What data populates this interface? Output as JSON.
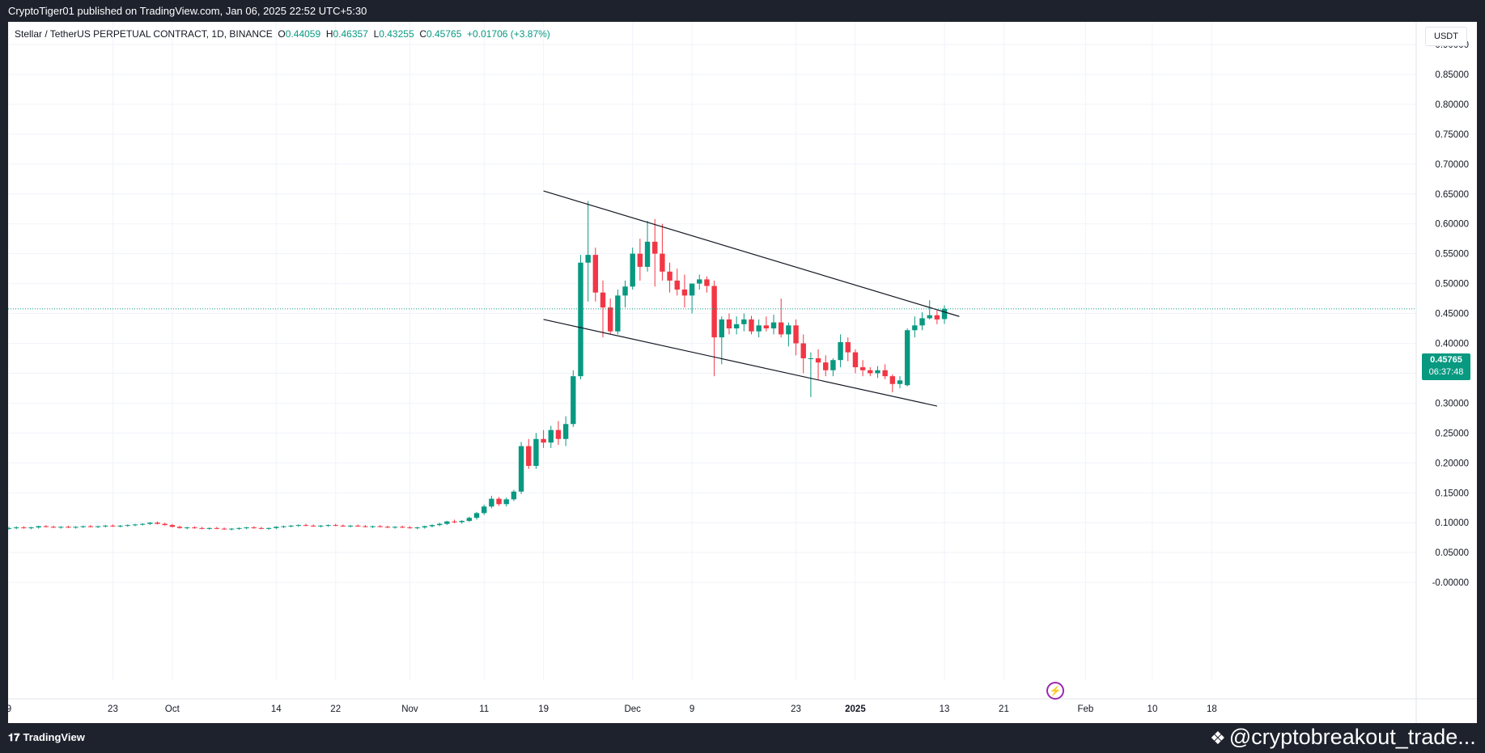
{
  "header": {
    "publish_line": "CryptoTiger01 published on TradingView.com, Jan 06, 2025 22:52 UTC+5:30"
  },
  "legend": {
    "symbol": "Stellar / TetherUS PERPETUAL CONTRACT, 1D, BINANCE",
    "open_label": "O",
    "open": "0.44059",
    "high_label": "H",
    "high": "0.46357",
    "low_label": "L",
    "low": "0.43255",
    "close_label": "C",
    "close": "0.45765",
    "change": "+0.01706 (+3.87%)"
  },
  "currency_button": "USDT",
  "last_price": {
    "price": "0.45765",
    "countdown": "06:37:48"
  },
  "footer": {
    "logo_text": "TradingView",
    "watermark": "@cryptobreakout_trade..."
  },
  "colors": {
    "up": "#089981",
    "down": "#f23645",
    "trendline": "#131722"
  },
  "chart_data": {
    "type": "candlestick",
    "title": "",
    "ylabel": "",
    "ylim": [
      -0.03,
      0.93
    ],
    "grid": true,
    "price_axis": "right",
    "y_ticks": [
      "0.90000",
      "0.85000",
      "0.80000",
      "0.75000",
      "0.70000",
      "0.65000",
      "0.60000",
      "0.55000",
      "0.50000",
      "0.45000",
      "0.40000",
      "0.35000",
      "0.30000",
      "0.25000",
      "0.20000",
      "0.15000",
      "0.10000",
      "0.05000",
      "-0.00000"
    ],
    "y_tick_values": [
      0.9,
      0.85,
      0.8,
      0.75,
      0.7,
      0.65,
      0.6,
      0.55,
      0.5,
      0.45,
      0.4,
      0.35,
      0.3,
      0.25,
      0.2,
      0.15,
      0.1,
      0.05,
      0.0
    ],
    "x_ticks": [
      {
        "label": "9",
        "index": 0
      },
      {
        "label": "23",
        "index": 14
      },
      {
        "label": "Oct",
        "index": 22
      },
      {
        "label": "14",
        "index": 36
      },
      {
        "label": "22",
        "index": 44
      },
      {
        "label": "Nov",
        "index": 54
      },
      {
        "label": "11",
        "index": 64
      },
      {
        "label": "19",
        "index": 72
      },
      {
        "label": "Dec",
        "index": 84
      },
      {
        "label": "9",
        "index": 92
      },
      {
        "label": "23",
        "index": 106
      },
      {
        "label": "2025",
        "index": 114
      },
      {
        "label": "13",
        "index": 126
      },
      {
        "label": "21",
        "index": 134
      },
      {
        "label": "Feb",
        "index": 145
      },
      {
        "label": "10",
        "index": 154
      },
      {
        "label": "18",
        "index": 162
      }
    ],
    "candles": [
      [
        0.09,
        0.093,
        0.088,
        0.091
      ],
      [
        0.091,
        0.094,
        0.089,
        0.092
      ],
      [
        0.092,
        0.094,
        0.09,
        0.091
      ],
      [
        0.091,
        0.093,
        0.089,
        0.092
      ],
      [
        0.092,
        0.095,
        0.09,
        0.094
      ],
      [
        0.094,
        0.096,
        0.092,
        0.093
      ],
      [
        0.093,
        0.095,
        0.091,
        0.092
      ],
      [
        0.092,
        0.094,
        0.09,
        0.093
      ],
      [
        0.093,
        0.095,
        0.091,
        0.092
      ],
      [
        0.092,
        0.094,
        0.09,
        0.093
      ],
      [
        0.093,
        0.095,
        0.091,
        0.094
      ],
      [
        0.094,
        0.096,
        0.092,
        0.093
      ],
      [
        0.093,
        0.095,
        0.091,
        0.094
      ],
      [
        0.094,
        0.096,
        0.092,
        0.095
      ],
      [
        0.095,
        0.097,
        0.093,
        0.094
      ],
      [
        0.094,
        0.096,
        0.092,
        0.095
      ],
      [
        0.095,
        0.097,
        0.093,
        0.096
      ],
      [
        0.096,
        0.098,
        0.094,
        0.097
      ],
      [
        0.097,
        0.099,
        0.095,
        0.098
      ],
      [
        0.098,
        0.101,
        0.096,
        0.1
      ],
      [
        0.1,
        0.102,
        0.097,
        0.098
      ],
      [
        0.098,
        0.1,
        0.095,
        0.096
      ],
      [
        0.096,
        0.098,
        0.092,
        0.093
      ],
      [
        0.093,
        0.095,
        0.09,
        0.091
      ],
      [
        0.091,
        0.093,
        0.089,
        0.092
      ],
      [
        0.092,
        0.094,
        0.09,
        0.091
      ],
      [
        0.091,
        0.093,
        0.089,
        0.09
      ],
      [
        0.09,
        0.092,
        0.088,
        0.091
      ],
      [
        0.091,
        0.093,
        0.089,
        0.09
      ],
      [
        0.09,
        0.092,
        0.088,
        0.089
      ],
      [
        0.089,
        0.091,
        0.087,
        0.09
      ],
      [
        0.09,
        0.092,
        0.088,
        0.091
      ],
      [
        0.091,
        0.093,
        0.089,
        0.092
      ],
      [
        0.092,
        0.094,
        0.09,
        0.091
      ],
      [
        0.091,
        0.093,
        0.089,
        0.09
      ],
      [
        0.09,
        0.092,
        0.088,
        0.091
      ],
      [
        0.091,
        0.094,
        0.089,
        0.093
      ],
      [
        0.093,
        0.095,
        0.091,
        0.094
      ],
      [
        0.094,
        0.096,
        0.092,
        0.095
      ],
      [
        0.095,
        0.097,
        0.093,
        0.096
      ],
      [
        0.096,
        0.098,
        0.094,
        0.095
      ],
      [
        0.095,
        0.097,
        0.093,
        0.094
      ],
      [
        0.094,
        0.096,
        0.092,
        0.095
      ],
      [
        0.095,
        0.097,
        0.093,
        0.096
      ],
      [
        0.096,
        0.098,
        0.094,
        0.095
      ],
      [
        0.095,
        0.097,
        0.093,
        0.094
      ],
      [
        0.094,
        0.096,
        0.092,
        0.095
      ],
      [
        0.095,
        0.097,
        0.093,
        0.094
      ],
      [
        0.094,
        0.096,
        0.092,
        0.093
      ],
      [
        0.093,
        0.095,
        0.091,
        0.094
      ],
      [
        0.094,
        0.096,
        0.092,
        0.093
      ],
      [
        0.093,
        0.095,
        0.091,
        0.092
      ],
      [
        0.092,
        0.094,
        0.09,
        0.093
      ],
      [
        0.093,
        0.095,
        0.091,
        0.092
      ],
      [
        0.092,
        0.094,
        0.09,
        0.091
      ],
      [
        0.091,
        0.093,
        0.089,
        0.092
      ],
      [
        0.092,
        0.095,
        0.09,
        0.094
      ],
      [
        0.094,
        0.097,
        0.092,
        0.096
      ],
      [
        0.096,
        0.1,
        0.094,
        0.098
      ],
      [
        0.098,
        0.103,
        0.096,
        0.102
      ],
      [
        0.102,
        0.105,
        0.099,
        0.101
      ],
      [
        0.101,
        0.104,
        0.098,
        0.103
      ],
      [
        0.103,
        0.11,
        0.101,
        0.108
      ],
      [
        0.108,
        0.118,
        0.105,
        0.116
      ],
      [
        0.116,
        0.13,
        0.113,
        0.127
      ],
      [
        0.127,
        0.145,
        0.124,
        0.14
      ],
      [
        0.14,
        0.143,
        0.128,
        0.131
      ],
      [
        0.131,
        0.142,
        0.127,
        0.139
      ],
      [
        0.139,
        0.155,
        0.136,
        0.152
      ],
      [
        0.152,
        0.235,
        0.148,
        0.228
      ],
      [
        0.228,
        0.24,
        0.19,
        0.195
      ],
      [
        0.195,
        0.25,
        0.19,
        0.24
      ],
      [
        0.24,
        0.255,
        0.225,
        0.234
      ],
      [
        0.234,
        0.262,
        0.225,
        0.255
      ],
      [
        0.255,
        0.27,
        0.23,
        0.24
      ],
      [
        0.24,
        0.278,
        0.228,
        0.265
      ],
      [
        0.265,
        0.355,
        0.26,
        0.345
      ],
      [
        0.345,
        0.548,
        0.34,
        0.535
      ],
      [
        0.535,
        0.638,
        0.47,
        0.548
      ],
      [
        0.548,
        0.56,
        0.47,
        0.485
      ],
      [
        0.485,
        0.505,
        0.41,
        0.46
      ],
      [
        0.46,
        0.475,
        0.415,
        0.42
      ],
      [
        0.42,
        0.49,
        0.415,
        0.48
      ],
      [
        0.48,
        0.505,
        0.46,
        0.495
      ],
      [
        0.495,
        0.56,
        0.49,
        0.55
      ],
      [
        0.55,
        0.575,
        0.505,
        0.528
      ],
      [
        0.528,
        0.605,
        0.52,
        0.57
      ],
      [
        0.57,
        0.608,
        0.495,
        0.55
      ],
      [
        0.55,
        0.6,
        0.505,
        0.52
      ],
      [
        0.52,
        0.535,
        0.485,
        0.505
      ],
      [
        0.505,
        0.525,
        0.48,
        0.49
      ],
      [
        0.49,
        0.515,
        0.46,
        0.48
      ],
      [
        0.48,
        0.495,
        0.45,
        0.5
      ],
      [
        0.5,
        0.515,
        0.49,
        0.507
      ],
      [
        0.507,
        0.512,
        0.485,
        0.496
      ]
    ],
    "candles_2": [
      [
        0.496,
        0.505,
        0.345,
        0.41
      ],
      [
        0.41,
        0.445,
        0.365,
        0.44
      ],
      [
        0.44,
        0.45,
        0.415,
        0.425
      ],
      [
        0.425,
        0.445,
        0.415,
        0.432
      ],
      [
        0.432,
        0.45,
        0.42,
        0.44
      ],
      [
        0.44,
        0.446,
        0.415,
        0.42
      ],
      [
        0.42,
        0.44,
        0.41,
        0.43
      ],
      [
        0.43,
        0.445,
        0.42,
        0.425
      ],
      [
        0.425,
        0.448,
        0.415,
        0.435
      ],
      [
        0.435,
        0.475,
        0.41,
        0.415
      ],
      [
        0.415,
        0.435,
        0.395,
        0.43
      ],
      [
        0.43,
        0.44,
        0.38,
        0.4
      ],
      [
        0.4,
        0.415,
        0.35,
        0.375
      ],
      [
        0.375,
        0.385,
        0.31,
        0.375
      ],
      [
        0.375,
        0.39,
        0.34,
        0.368
      ],
      [
        0.368,
        0.38,
        0.345,
        0.355
      ],
      [
        0.355,
        0.375,
        0.345,
        0.372
      ],
      [
        0.372,
        0.415,
        0.36,
        0.402
      ],
      [
        0.402,
        0.41,
        0.37,
        0.385
      ],
      [
        0.385,
        0.39,
        0.35,
        0.36
      ],
      [
        0.36,
        0.372,
        0.345,
        0.355
      ],
      [
        0.355,
        0.36,
        0.345,
        0.35
      ],
      [
        0.35,
        0.362,
        0.342,
        0.355
      ],
      [
        0.355,
        0.365,
        0.34,
        0.345
      ],
      [
        0.345,
        0.348,
        0.318,
        0.332
      ],
      [
        0.332,
        0.345,
        0.325,
        0.338
      ],
      [
        0.33,
        0.425,
        0.328,
        0.422
      ],
      [
        0.422,
        0.445,
        0.41,
        0.43
      ],
      [
        0.43,
        0.452,
        0.422,
        0.442
      ],
      [
        0.442,
        0.472,
        0.44,
        0.447
      ],
      [
        0.447,
        0.455,
        0.432,
        0.44
      ],
      [
        0.44059,
        0.46357,
        0.43255,
        0.45765
      ]
    ],
    "candles_2_start_index": 93,
    "trendlines": [
      {
        "name": "upper",
        "from": {
          "index": 72,
          "price": 0.655
        },
        "to": {
          "index": 128,
          "price": 0.445
        }
      },
      {
        "name": "lower",
        "from": {
          "index": 72,
          "price": 0.44
        },
        "to": {
          "index": 125,
          "price": 0.295
        }
      }
    ],
    "last_price_line": 0.45765
  }
}
